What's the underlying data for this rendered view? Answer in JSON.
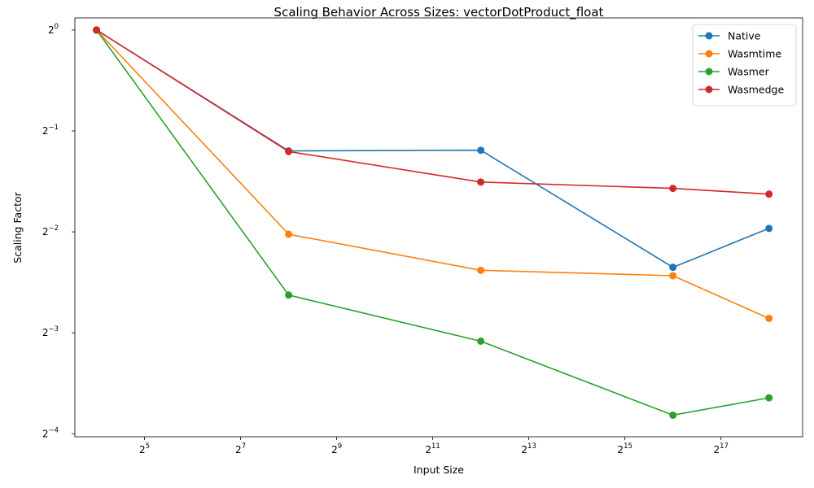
{
  "chart_data": {
    "type": "line",
    "title": "Scaling Behavior Across Sizes: vectorDotProduct_float",
    "xlabel": "Input Size",
    "ylabel": "Scaling Factor",
    "xscale": "log2",
    "yscale": "log2",
    "x": [
      16,
      256,
      4096,
      65536,
      262144
    ],
    "xlim_exp": [
      3.55,
      18.7
    ],
    "ylim_exp": [
      -4.03,
      0.12
    ],
    "x_ticks": [
      {
        "base": "2",
        "exp": "5",
        "value": 32
      },
      {
        "base": "2",
        "exp": "7",
        "value": 128
      },
      {
        "base": "2",
        "exp": "9",
        "value": 512
      },
      {
        "base": "2",
        "exp": "11",
        "value": 2048
      },
      {
        "base": "2",
        "exp": "13",
        "value": 8192
      },
      {
        "base": "2",
        "exp": "15",
        "value": 32768
      },
      {
        "base": "2",
        "exp": "17",
        "value": 131072
      }
    ],
    "y_ticks": [
      {
        "base": "2",
        "exp": "0",
        "value": 1
      },
      {
        "base": "2",
        "exp": "−1",
        "value": 0.5
      },
      {
        "base": "2",
        "exp": "−2",
        "value": 0.25
      },
      {
        "base": "2",
        "exp": "−3",
        "value": 0.125
      },
      {
        "base": "2",
        "exp": "−4",
        "value": 0.0625
      }
    ],
    "series": [
      {
        "name": "Native",
        "color": "#1f77b4",
        "values": [
          1.0,
          0.436,
          0.438,
          0.196,
          0.256
        ]
      },
      {
        "name": "Wasmtime",
        "color": "#ff7f0e",
        "values": [
          1.0,
          0.246,
          0.192,
          0.185,
          0.138
        ]
      },
      {
        "name": "Wasmer",
        "color": "#2ca02c",
        "values": [
          1.0,
          0.162,
          0.118,
          0.071,
          0.08
        ]
      },
      {
        "name": "Wasmedge",
        "color": "#d62728",
        "values": [
          1.0,
          0.434,
          0.352,
          0.337,
          0.324
        ]
      }
    ],
    "grid": false,
    "legend": "top-right"
  }
}
